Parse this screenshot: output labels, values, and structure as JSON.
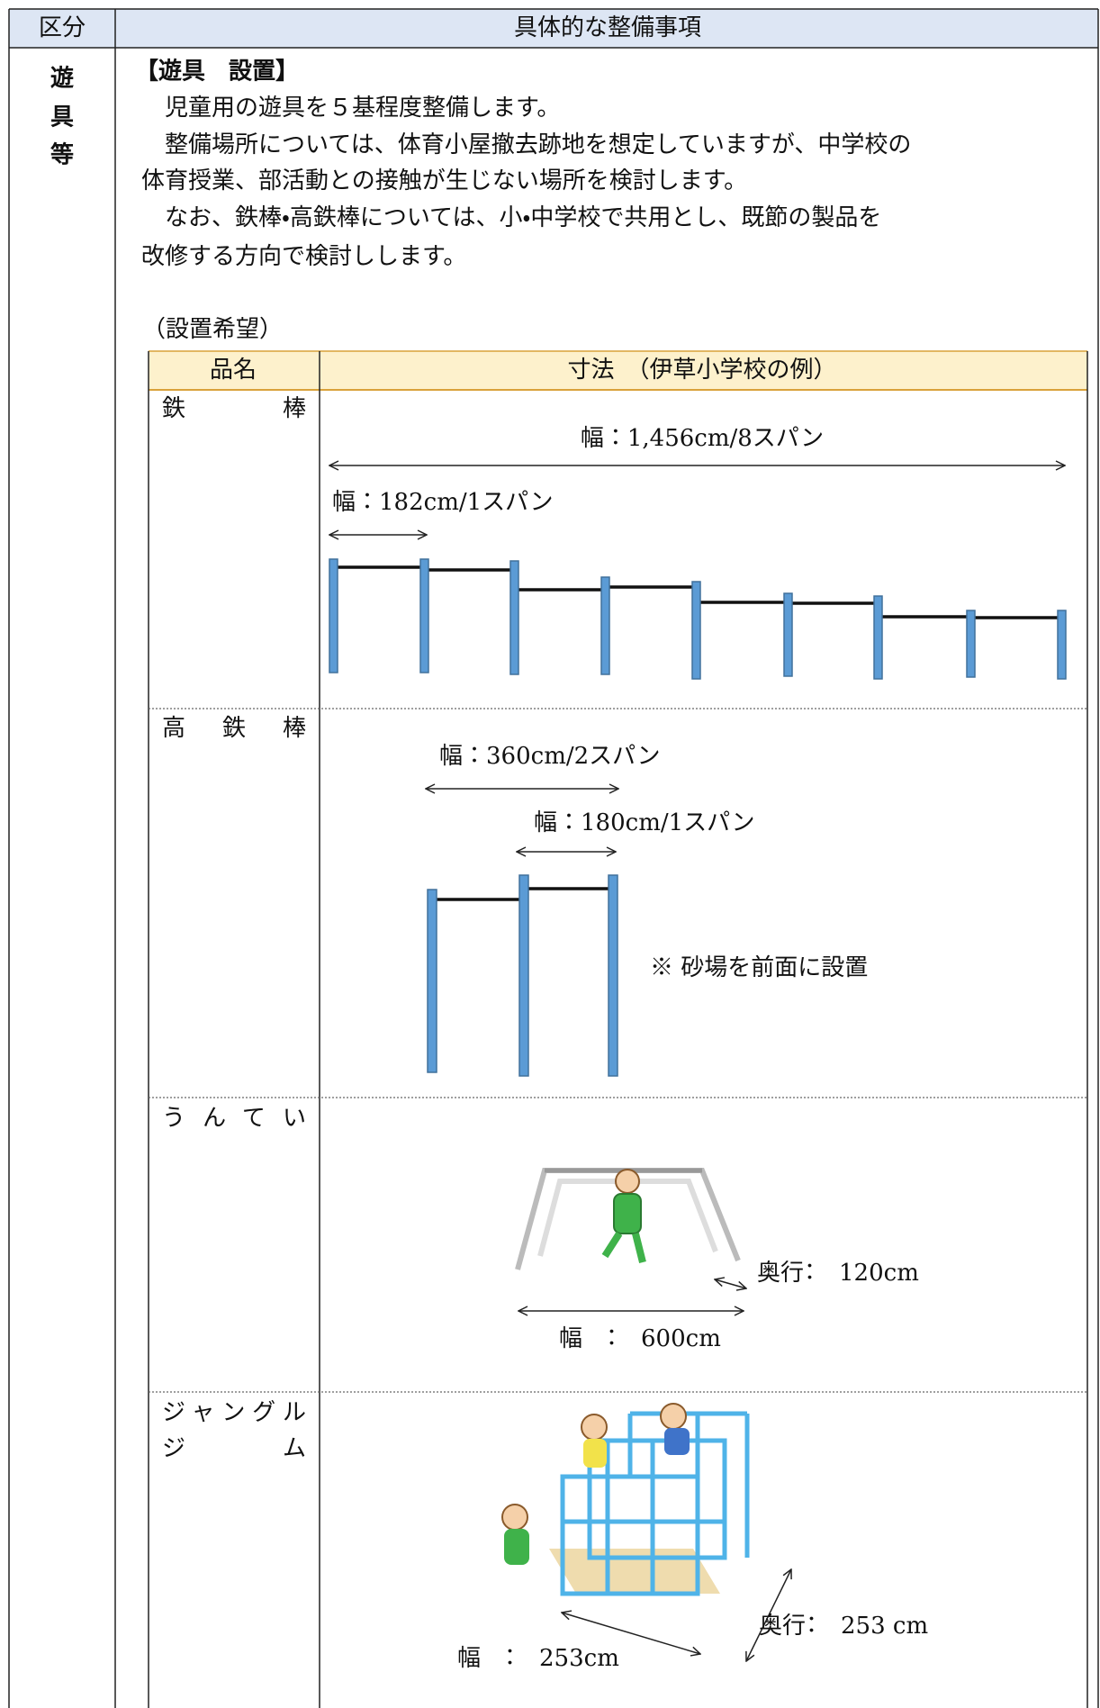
{
  "header": {
    "col1": "区分",
    "col2": "具体的な整備事項"
  },
  "section": {
    "label": [
      "遊",
      "具",
      "等"
    ],
    "heading": "【遊具　設置】",
    "paragraphs": [
      "　児童用の遊具を５基程度整備します。",
      "　整備場所については、体育小屋撤去跡地を想定していますが、中学校の",
      "体育授業、部活動との接触が生じない場所を検討します。",
      "　なお、鉄棒・高鉄棒については、小・中学校で共用とし、既節の製品を",
      "改修する方向で検討しします。"
    ],
    "table_caption": "（設置希望）"
  },
  "table": {
    "headers": [
      "品名",
      "寸法　（伊草小学校の例）"
    ],
    "rows": [
      {
        "name": [
          "鉄棒"
        ],
        "notes": [
          "幅：1,456cm/8スパン",
          "幅：182cm/1スパン"
        ]
      },
      {
        "name": [
          "高鉄棒"
        ],
        "notes": [
          "幅：360cm/2スパン",
          "幅：180cm/1スパン",
          "※ 砂場を前面に設置"
        ]
      },
      {
        "name": [
          "うんてい"
        ],
        "notes": [
          "奥行：　120cm",
          "幅　：　600cm"
        ]
      },
      {
        "name": [
          "ジャングル",
          "ジム"
        ],
        "notes": [
          "奥行：　253 cm",
          "幅　：　253cm"
        ]
      }
    ]
  }
}
